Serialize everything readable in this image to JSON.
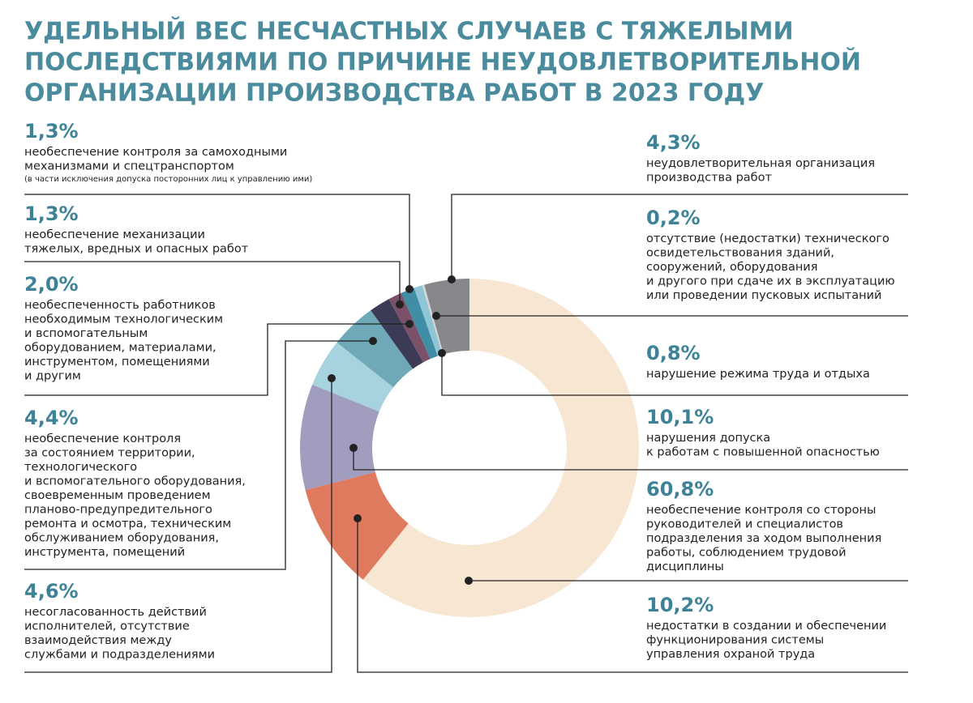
{
  "chart_data": {
    "type": "donut",
    "title": [
      "УДЕЛЬНЫЙ ВЕС НЕСЧАСТНЫХ СЛУЧАЕВ С ТЯЖЕЛЫМИ",
      "ПОСЛЕДСТВИЯМИ ПО ПРИЧИНЕ НЕУДОВЛЕТВОРИТЕЛЬНОЙ",
      "ОРГАНИЗАЦИИ ПРОИЗВОДСТВА РАБОТ В 2023 ГОДУ"
    ],
    "categories": [
      [
        "необеспечение контроля со стороны",
        "руководителей и специалистов",
        "подразделения за ходом выполнения",
        "работы, соблюдением трудовой",
        "дисциплины"
      ],
      [
        "недостатки в создании и обеспечении",
        "функционирования системы",
        "управления охраной труда"
      ],
      [
        "нарушения допуска",
        "к работам с повышенной опасностью"
      ],
      [
        "несогласованность действий",
        "исполнителей, отсутствие",
        "взаимодействия между",
        "службами и подразделениями"
      ],
      [
        "необеспечение контроля",
        "за состоянием территории,",
        "технологического",
        "и вспомогательного оборудования,",
        "своевременным проведением",
        "планово-предупредительного",
        "ремонта и осмотра, техническим",
        "обслуживанием оборудования,",
        "инструмента, помещений"
      ],
      [
        "необеспеченность работников",
        "необходимым технологическим",
        "и вспомогательным",
        "оборудованием, материалами,",
        "инструментом, помещениями",
        "и другим"
      ],
      [
        "необеспечение механизации",
        "тяжелых, вредных и опасных работ"
      ],
      [
        "необеспечение контроля за самоходными",
        "механизмами и спецтранспортом"
      ],
      [
        "нарушение режима труда и отдыха"
      ],
      [
        "отсутствие (недостатки) технического",
        "освидетельствования зданий,",
        "сооружений, оборудования",
        "и другого при сдаче их в эксплуатацию",
        "или проведении пусковых испытаний"
      ],
      [
        "неудовлетворительная организация",
        "производства работ"
      ]
    ],
    "values": [
      60.8,
      10.2,
      10.1,
      4.6,
      4.4,
      2.0,
      1.3,
      1.3,
      0.8,
      0.2,
      4.3
    ],
    "value_labels": [
      "60,8%",
      "10,2%",
      "10,1%",
      "4,6%",
      "4,4%",
      "2,0%",
      "1,3%",
      "1,3%",
      "0,8%",
      "0,2%",
      "4,3%"
    ],
    "colors": [
      "#f6e6d2",
      "#df7a5e",
      "#a19dbf",
      "#a7d3de",
      "#6fa8b7",
      "#3b3b55",
      "#7b5169",
      "#3f8ea6",
      "#8fc5d5",
      "#d6d6d6",
      "#86888c"
    ],
    "annotation": "(в части исключения допуска посторонних лиц к управлению ими)"
  }
}
